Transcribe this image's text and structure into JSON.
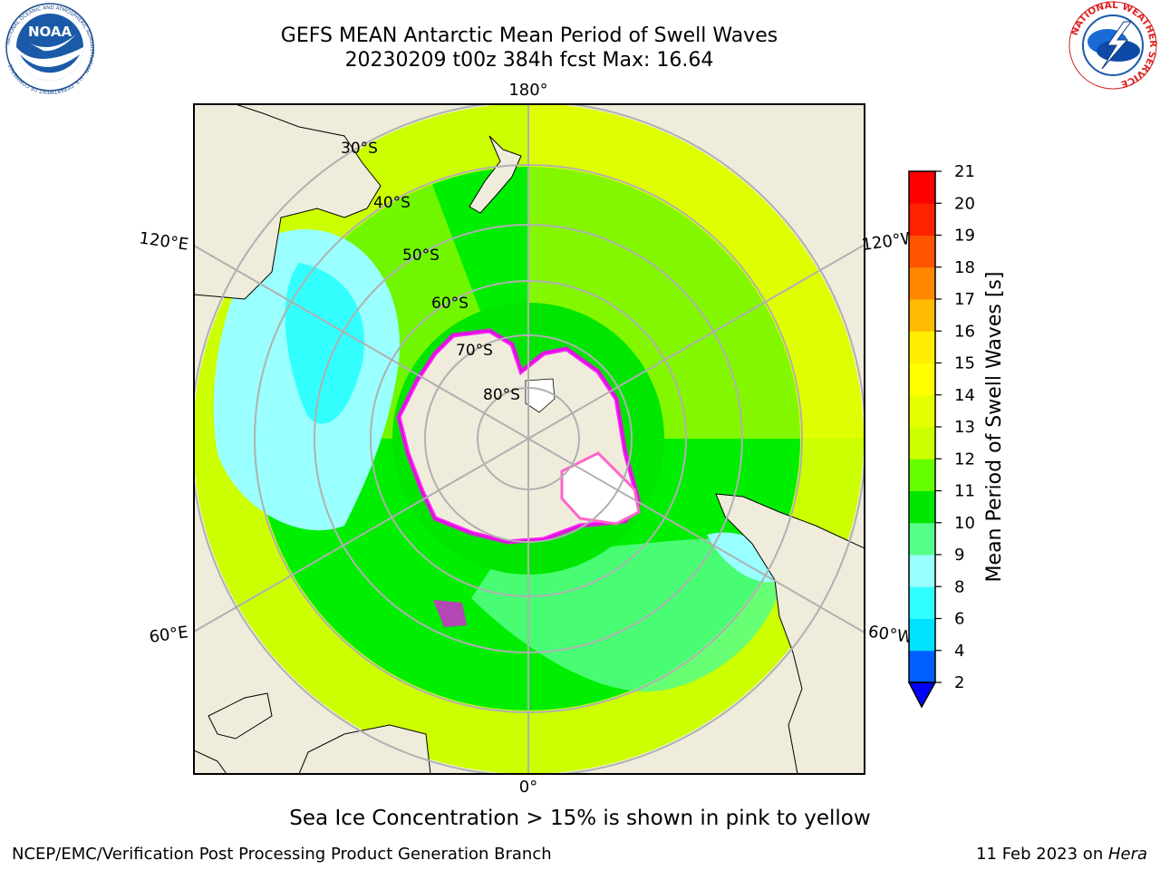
{
  "header": {
    "title_line1": "GEFS MEAN Antarctic Mean Period of Swell Waves",
    "title_line2": "20230209 t00z 384h fcst   Max: 16.64"
  },
  "logos": {
    "left": "NOAA",
    "left_ring_text": "NATIONAL OCEANIC AND ATMOSPHERIC ADMINISTRATION · U.S. DEPARTMENT OF COMMERCE",
    "right_ring_text": "NATIONAL WEATHER SERVICE"
  },
  "map": {
    "projection": "south-polar-stereographic",
    "lon_labels": {
      "top": "180°",
      "bottom": "0°",
      "upper_left": "120°E",
      "lower_left": "60°E",
      "upper_right": "120°W",
      "lower_right": "60°W"
    },
    "lat_labels": [
      "30°S",
      "40°S",
      "50°S",
      "60°S",
      "70°S",
      "80°S"
    ],
    "ocean_colors": {
      "subtropical": "#ccff00",
      "midlat": "#00ee00",
      "indian": "#99ffff",
      "atlantic": "#55ff88",
      "south_pacific_east": "#eeff00"
    },
    "land_color": "#efecdc",
    "ice_colors": [
      "#ff00ff",
      "#ff66cc",
      "#ffffff"
    ]
  },
  "colorbar": {
    "label": "Mean Period of Swell Waves [s]",
    "ticks": [
      "2",
      "4",
      "6",
      "8",
      "9",
      "10",
      "11",
      "12",
      "13",
      "14",
      "15",
      "16",
      "17",
      "18",
      "19",
      "20",
      "21"
    ],
    "colors": [
      "#0060ff",
      "#00e0ff",
      "#30ffff",
      "#99ffff",
      "#55ff88",
      "#00e600",
      "#66ff00",
      "#ccff00",
      "#e6ff00",
      "#ffff00",
      "#ffee00",
      "#ffbb00",
      "#ff8800",
      "#ff5500",
      "#ff2200",
      "#ff0000"
    ],
    "extend_color": "#0000ff"
  },
  "footnote": "Sea Ice Concentration > 15% is shown in pink to yellow",
  "credits": {
    "left": "NCEP/EMC/Verification Post Processing Product Generation Branch",
    "right_prefix": "11 Feb 2023 on ",
    "right_host": "Hera"
  }
}
